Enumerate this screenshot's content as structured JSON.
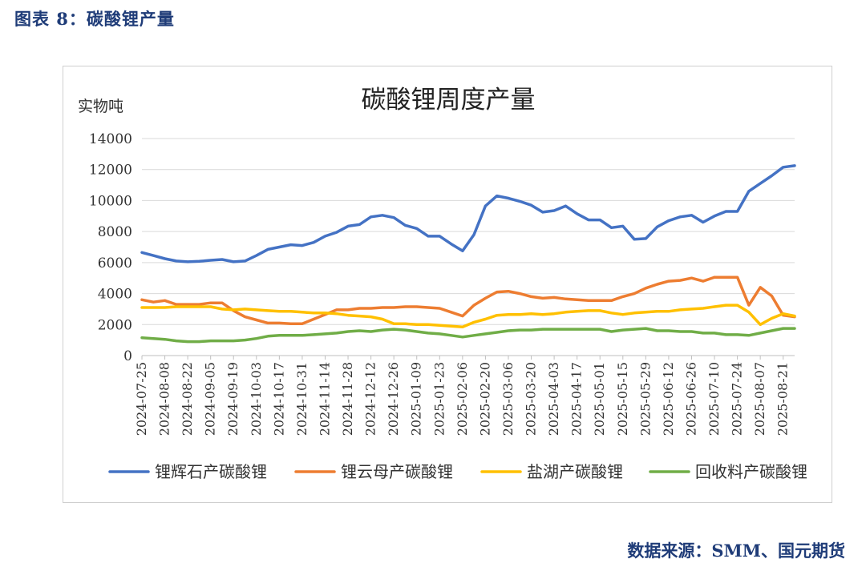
{
  "caption": "图表 8：碳酸锂产量",
  "source": "数据来源：SMM、国元期货",
  "chart_data": {
    "type": "line",
    "title": "碳酸锂周度产量",
    "ylabel": "实物吨",
    "xlabel": "",
    "ylim": [
      0,
      14000
    ],
    "yticks": [
      0,
      2000,
      4000,
      6000,
      8000,
      10000,
      12000,
      14000
    ],
    "grid": true,
    "legend_position": "bottom",
    "x": [
      "2024-07-25",
      "2024-08-01",
      "2024-08-08",
      "2024-08-15",
      "2024-08-22",
      "2024-08-29",
      "2024-09-05",
      "2024-09-12",
      "2024-09-19",
      "2024-09-26",
      "2024-10-03",
      "2024-10-10",
      "2024-10-17",
      "2024-10-24",
      "2024-10-31",
      "2024-11-07",
      "2024-11-14",
      "2024-11-21",
      "2024-11-28",
      "2024-12-05",
      "2024-12-12",
      "2024-12-19",
      "2024-12-26",
      "2025-01-02",
      "2025-01-09",
      "2025-01-16",
      "2025-01-23",
      "2025-01-30",
      "2025-02-06",
      "2025-02-13",
      "2025-02-20",
      "2025-02-27",
      "2025-03-06",
      "2025-03-13",
      "2025-03-20",
      "2025-03-27",
      "2025-04-03",
      "2025-04-10",
      "2025-04-17",
      "2025-04-24",
      "2025-05-01",
      "2025-05-08",
      "2025-05-15",
      "2025-05-22",
      "2025-05-29",
      "2025-06-05",
      "2025-06-12",
      "2025-06-19",
      "2025-06-26",
      "2025-07-03",
      "2025-07-10",
      "2025-07-17",
      "2025-07-24",
      "2025-07-31",
      "2025-08-07",
      "2025-08-14",
      "2025-08-21",
      "2025-08-28"
    ],
    "x_tick_labels": [
      "2024-07-25",
      "2024-08-08",
      "2024-08-22",
      "2024-09-05",
      "2024-09-19",
      "2024-10-03",
      "2024-10-17",
      "2024-10-31",
      "2024-11-14",
      "2024-11-28",
      "2024-12-12",
      "2024-12-26",
      "2025-01-09",
      "2025-01-23",
      "2025-02-06",
      "2025-02-20",
      "2025-03-06",
      "2025-03-20",
      "2025-04-03",
      "2025-04-17",
      "2025-05-01",
      "2025-05-15",
      "2025-05-29",
      "2025-06-12",
      "2025-06-26",
      "2025-07-10",
      "2025-07-24",
      "2025-08-07",
      "2025-08-21"
    ],
    "series": [
      {
        "name": "锂辉石产碳酸锂",
        "color": "#4472c4",
        "values": [
          6650,
          6450,
          6250,
          6100,
          6050,
          6080,
          6150,
          6200,
          6050,
          6100,
          6450,
          6850,
          7000,
          7150,
          7100,
          7300,
          7700,
          7950,
          8350,
          8450,
          8950,
          9050,
          8900,
          8400,
          8200,
          7700,
          7700,
          7200,
          6750,
          7800,
          9650,
          10300,
          10150,
          9950,
          9700,
          9250,
          9350,
          9650,
          9150,
          8750,
          8750,
          8250,
          8350,
          7500,
          7550,
          8300,
          8700,
          8950,
          9050,
          8600,
          9000,
          9300,
          9300,
          10600,
          11100,
          11600,
          12150,
          12250
        ]
      },
      {
        "name": "锂云母产碳酸锂",
        "color": "#ed7d31",
        "values": [
          3600,
          3450,
          3550,
          3300,
          3300,
          3300,
          3400,
          3400,
          2900,
          2500,
          2300,
          2100,
          2100,
          2050,
          2050,
          2350,
          2650,
          2950,
          2950,
          3050,
          3050,
          3100,
          3100,
          3150,
          3150,
          3100,
          3050,
          2800,
          2550,
          3250,
          3700,
          4100,
          4150,
          4000,
          3800,
          3700,
          3750,
          3650,
          3600,
          3550,
          3550,
          3550,
          3800,
          4000,
          4350,
          4600,
          4800,
          4850,
          5000,
          4800,
          5050,
          5050,
          5050,
          3250,
          4400,
          3850,
          2600,
          2500
        ]
      },
      {
        "name": "盐湖产碳酸锂",
        "color": "#ffc000",
        "values": [
          3100,
          3100,
          3100,
          3150,
          3150,
          3150,
          3150,
          3000,
          2950,
          3000,
          2950,
          2900,
          2850,
          2850,
          2800,
          2750,
          2750,
          2700,
          2600,
          2550,
          2500,
          2350,
          2050,
          2050,
          2000,
          2000,
          1950,
          1900,
          1850,
          2150,
          2350,
          2600,
          2650,
          2650,
          2700,
          2650,
          2700,
          2800,
          2850,
          2900,
          2900,
          2750,
          2650,
          2750,
          2800,
          2850,
          2850,
          2950,
          3000,
          3050,
          3150,
          3250,
          3250,
          2800,
          2000,
          2400,
          2700,
          2550
        ]
      },
      {
        "name": "回收料产碳酸锂",
        "color": "#70ad47",
        "values": [
          1150,
          1100,
          1050,
          950,
          900,
          900,
          950,
          950,
          950,
          1000,
          1100,
          1250,
          1300,
          1300,
          1300,
          1350,
          1400,
          1450,
          1550,
          1600,
          1550,
          1650,
          1700,
          1650,
          1550,
          1450,
          1400,
          1300,
          1200,
          1300,
          1400,
          1500,
          1600,
          1650,
          1650,
          1700,
          1700,
          1700,
          1700,
          1700,
          1700,
          1550,
          1650,
          1700,
          1750,
          1600,
          1600,
          1550,
          1550,
          1450,
          1450,
          1350,
          1350,
          1300,
          1450,
          1600,
          1750,
          1750
        ]
      }
    ]
  }
}
